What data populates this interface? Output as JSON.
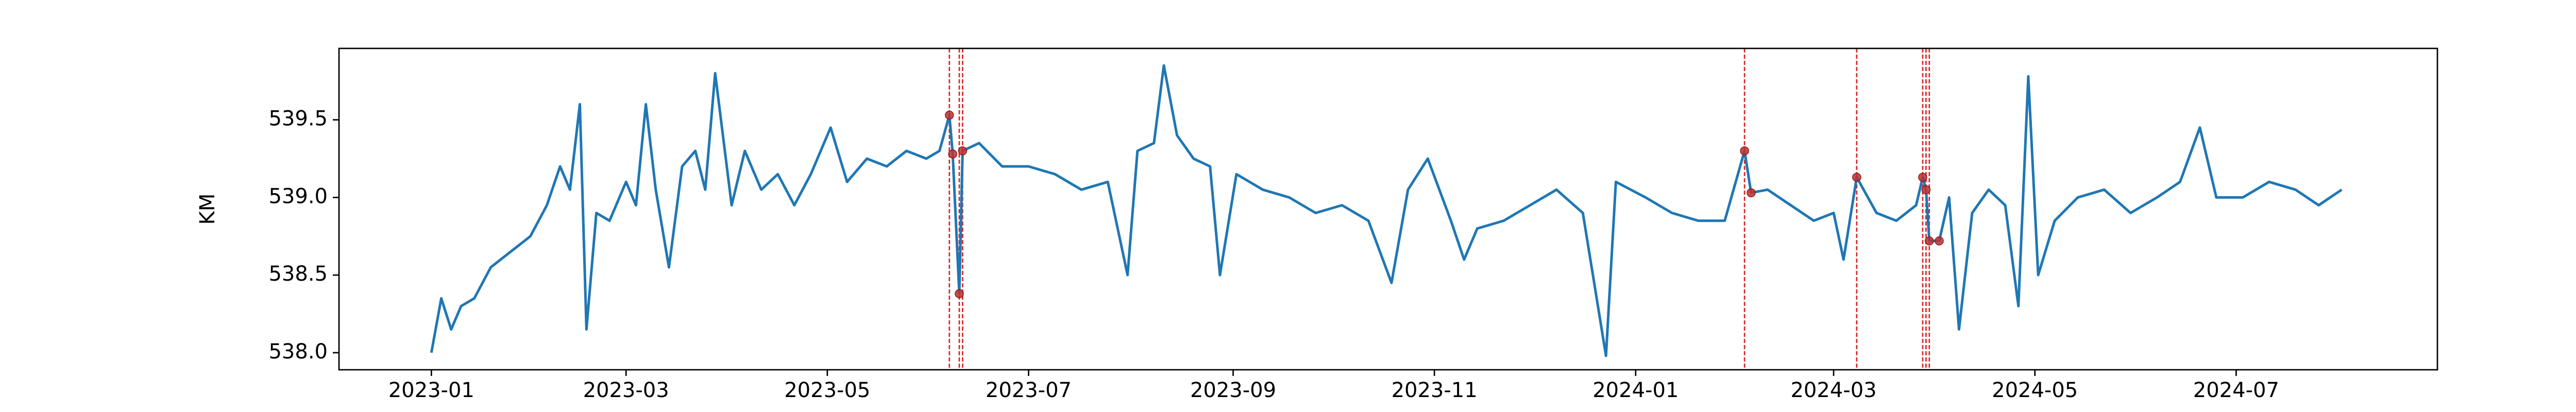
{
  "chart_data": {
    "type": "line",
    "ylabel": "KM",
    "xscale": "time",
    "xlim": [
      "2022-12-04",
      "2024-08-31"
    ],
    "ylim": [
      537.89,
      539.96
    ],
    "xticks": [
      {
        "value": "2023-01-01",
        "label": "2023-01"
      },
      {
        "value": "2023-03-01",
        "label": "2023-03"
      },
      {
        "value": "2023-05-01",
        "label": "2023-05"
      },
      {
        "value": "2023-07-01",
        "label": "2023-07"
      },
      {
        "value": "2023-09-01",
        "label": "2023-09"
      },
      {
        "value": "2023-11-01",
        "label": "2023-11"
      },
      {
        "value": "2024-01-01",
        "label": "2024-01"
      },
      {
        "value": "2024-03-01",
        "label": "2024-03"
      },
      {
        "value": "2024-05-01",
        "label": "2024-05"
      },
      {
        "value": "2024-07-01",
        "label": "2024-07"
      }
    ],
    "yticks": [
      {
        "value": 538.0,
        "label": "538.0"
      },
      {
        "value": 538.5,
        "label": "538.5"
      },
      {
        "value": 539.0,
        "label": "539.0"
      },
      {
        "value": 539.5,
        "label": "539.5"
      }
    ],
    "grid": false,
    "series": [
      {
        "color": "#1f77b4",
        "x": [
          "2023-01-01",
          "2023-01-04",
          "2023-01-07",
          "2023-01-10",
          "2023-01-14",
          "2023-01-19",
          "2023-01-25",
          "2023-01-31",
          "2023-02-05",
          "2023-02-09",
          "2023-02-12",
          "2023-02-15",
          "2023-02-17",
          "2023-02-20",
          "2023-02-24",
          "2023-03-01",
          "2023-03-04",
          "2023-03-07",
          "2023-03-10",
          "2023-03-14",
          "2023-03-18",
          "2023-03-22",
          "2023-03-25",
          "2023-03-28",
          "2023-04-02",
          "2023-04-06",
          "2023-04-11",
          "2023-04-16",
          "2023-04-21",
          "2023-04-26",
          "2023-05-02",
          "2023-05-07",
          "2023-05-13",
          "2023-05-19",
          "2023-05-25",
          "2023-05-31",
          "2023-06-04",
          "2023-06-07",
          "2023-06-08",
          "2023-06-10",
          "2023-06-11",
          "2023-06-16",
          "2023-06-23",
          "2023-07-01",
          "2023-07-09",
          "2023-07-17",
          "2023-07-25",
          "2023-07-31",
          "2023-08-03",
          "2023-08-08",
          "2023-08-11",
          "2023-08-15",
          "2023-08-20",
          "2023-08-25",
          "2023-08-28",
          "2023-09-02",
          "2023-09-10",
          "2023-09-18",
          "2023-09-26",
          "2023-10-04",
          "2023-10-12",
          "2023-10-19",
          "2023-10-24",
          "2023-10-30",
          "2023-11-06",
          "2023-11-10",
          "2023-11-14",
          "2023-11-22",
          "2023-11-30",
          "2023-12-08",
          "2023-12-16",
          "2023-12-23",
          "2023-12-26",
          "2024-01-04",
          "2024-01-12",
          "2024-01-20",
          "2024-01-28",
          "2024-02-03",
          "2024-02-05",
          "2024-02-10",
          "2024-02-17",
          "2024-02-24",
          "2024-03-01",
          "2024-03-04",
          "2024-03-08",
          "2024-03-14",
          "2024-03-20",
          "2024-03-26",
          "2024-03-28",
          "2024-03-29",
          "2024-03-30",
          "2024-04-02",
          "2024-04-05",
          "2024-04-08",
          "2024-04-12",
          "2024-04-17",
          "2024-04-22",
          "2024-04-26",
          "2024-04-29",
          "2024-05-02",
          "2024-05-07",
          "2024-05-14",
          "2024-05-22",
          "2024-05-30",
          "2024-06-07",
          "2024-06-14",
          "2024-06-20",
          "2024-06-25",
          "2024-07-03",
          "2024-07-11",
          "2024-07-19",
          "2024-07-26",
          "2024-08-02"
        ],
        "values": [
          538.0,
          538.35,
          538.15,
          538.3,
          538.35,
          538.55,
          538.65,
          538.75,
          538.95,
          539.2,
          539.05,
          539.6,
          538.15,
          538.9,
          538.85,
          539.1,
          538.95,
          539.6,
          539.05,
          538.55,
          539.2,
          539.3,
          539.05,
          539.8,
          538.95,
          539.3,
          539.05,
          539.15,
          538.95,
          539.15,
          539.45,
          539.1,
          539.25,
          539.2,
          539.3,
          539.25,
          539.3,
          539.53,
          539.28,
          538.38,
          539.3,
          539.35,
          539.2,
          539.2,
          539.15,
          539.05,
          539.1,
          538.5,
          539.3,
          539.35,
          539.85,
          539.4,
          539.25,
          539.2,
          538.5,
          539.15,
          539.05,
          539.0,
          538.9,
          538.95,
          538.85,
          538.45,
          539.05,
          539.25,
          538.85,
          538.6,
          538.8,
          538.85,
          538.95,
          539.05,
          538.9,
          537.98,
          539.1,
          539.0,
          538.9,
          538.85,
          538.85,
          539.3,
          539.03,
          539.05,
          538.95,
          538.85,
          538.9,
          538.6,
          539.13,
          538.9,
          538.85,
          538.95,
          539.13,
          539.05,
          538.72,
          538.72,
          539.0,
          538.15,
          538.9,
          539.05,
          538.95,
          538.3,
          539.78,
          538.5,
          538.85,
          539.0,
          539.05,
          538.9,
          539.0,
          539.1,
          539.45,
          539.0,
          539.0,
          539.1,
          539.05,
          538.95,
          539.05
        ]
      }
    ],
    "markers": {
      "color": "#c03030",
      "x": [
        "2023-06-07",
        "2023-06-08",
        "2023-06-10",
        "2023-06-11",
        "2024-02-03",
        "2024-02-05",
        "2024-03-08",
        "2024-03-28",
        "2024-03-29",
        "2024-03-30",
        "2024-04-02"
      ],
      "values": [
        539.53,
        539.28,
        538.38,
        539.3,
        539.3,
        539.03,
        539.13,
        539.13,
        539.05,
        538.72,
        538.72
      ]
    },
    "vlines": {
      "color": "#d62728",
      "x": [
        "2023-06-07",
        "2023-06-10",
        "2023-06-11",
        "2024-02-03",
        "2024-03-08",
        "2024-03-28",
        "2024-03-29",
        "2024-03-30"
      ]
    }
  }
}
